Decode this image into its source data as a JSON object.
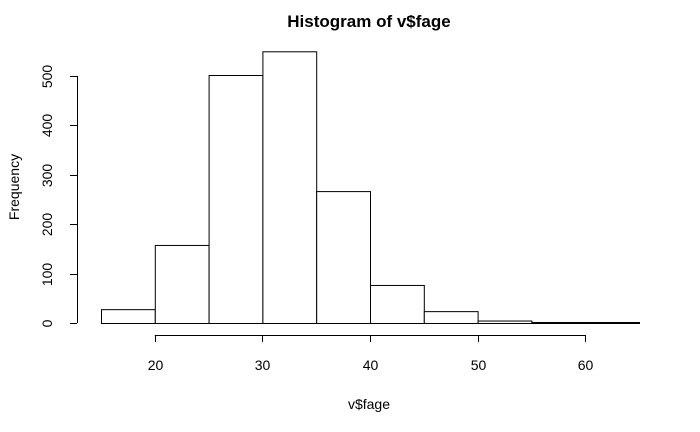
{
  "chart_data": {
    "type": "bar",
    "title": "Histogram of v$fage",
    "xlabel": "v$fage",
    "ylabel": "Frequency",
    "bins": [
      {
        "start": 15,
        "end": 20,
        "count": 28
      },
      {
        "start": 20,
        "end": 25,
        "count": 158
      },
      {
        "start": 25,
        "end": 30,
        "count": 502
      },
      {
        "start": 30,
        "end": 35,
        "count": 550
      },
      {
        "start": 35,
        "end": 40,
        "count": 267
      },
      {
        "start": 40,
        "end": 45,
        "count": 77
      },
      {
        "start": 45,
        "end": 50,
        "count": 24
      },
      {
        "start": 50,
        "end": 55,
        "count": 5
      },
      {
        "start": 55,
        "end": 60,
        "count": 2
      },
      {
        "start": 60,
        "end": 65,
        "count": 2
      }
    ],
    "xlim": [
      15,
      65
    ],
    "ylim": [
      0,
      550
    ],
    "x_ticks": [
      20,
      30,
      40,
      50,
      60
    ],
    "y_ticks": [
      0,
      100,
      200,
      300,
      400,
      500
    ],
    "grid": false
  }
}
